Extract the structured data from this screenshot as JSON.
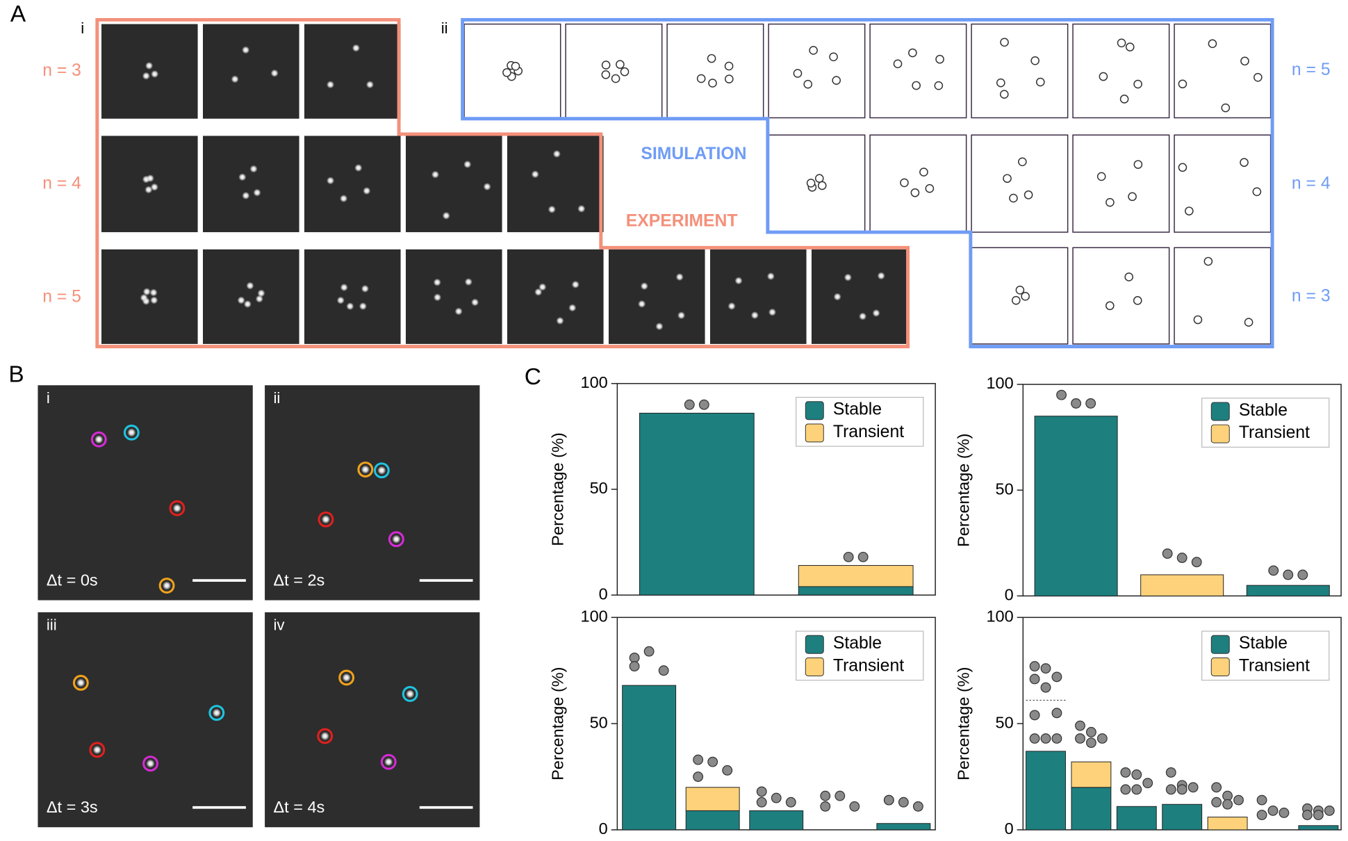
{
  "panel_a": {
    "label": "A",
    "subpanels": [
      "i",
      "ii"
    ],
    "experiment": {
      "label": "EXPERIMENT",
      "rows": [
        "n = 3",
        "n = 4",
        "n = 5"
      ]
    },
    "simulation": {
      "label": "SIMULATION",
      "rows": [
        "n = 5",
        "n = 4",
        "n = 3"
      ]
    }
  },
  "panel_b": {
    "label": "B",
    "frames": [
      {
        "label": "i",
        "time": "Δt = 0s"
      },
      {
        "label": "ii",
        "time": "Δt = 2s"
      },
      {
        "label": "iii",
        "time": "Δt = 3s"
      },
      {
        "label": "iv",
        "time": "Δt = 4s"
      }
    ]
  },
  "panel_c": {
    "label": "C"
  },
  "chart_data": [
    {
      "type": "bar",
      "ylabel": "Percentage (%)",
      "ylim": [
        0,
        100
      ],
      "yticks": [
        0,
        50,
        100
      ],
      "categories": [
        null,
        null
      ],
      "series": [
        {
          "name": "Stable",
          "color": "#1e7f7f",
          "values": [
            86,
            4
          ]
        },
        {
          "name": "Transient",
          "color": "#fdd27a",
          "values": [
            0,
            10
          ]
        }
      ],
      "points": [
        [
          90,
          90
        ],
        [
          18,
          18
        ]
      ]
    },
    {
      "type": "bar",
      "ylabel": "Percentage (%)",
      "ylim": [
        0,
        100
      ],
      "yticks": [
        0,
        50,
        100
      ],
      "categories": [
        null,
        null,
        null
      ],
      "series": [
        {
          "name": "Stable",
          "color": "#1e7f7f",
          "values": [
            85,
            0,
            5
          ]
        },
        {
          "name": "Transient",
          "color": "#fdd27a",
          "values": [
            0,
            10,
            0
          ]
        }
      ],
      "points": [
        [
          95,
          91,
          91
        ],
        [
          20,
          18,
          16
        ],
        [
          12,
          10,
          10
        ]
      ]
    },
    {
      "type": "bar",
      "ylabel": "Percentage (%)",
      "ylim": [
        0,
        100
      ],
      "yticks": [
        0,
        50,
        100
      ],
      "categories": [
        null,
        null,
        null,
        null,
        null
      ],
      "series": [
        {
          "name": "Stable",
          "color": "#1e7f7f",
          "values": [
            68,
            9,
            9,
            0,
            3
          ]
        },
        {
          "name": "Transient",
          "color": "#fdd27a",
          "values": [
            0,
            11,
            0,
            0,
            0
          ]
        }
      ],
      "points": [
        [
          81,
          84,
          75,
          77
        ],
        [
          33,
          32,
          28,
          25
        ],
        [
          18,
          15,
          13,
          13
        ],
        [
          16,
          16,
          11,
          11
        ],
        [
          14,
          13,
          11,
          14
        ]
      ]
    },
    {
      "type": "bar",
      "ylabel": "Percentage (%)",
      "ylim": [
        0,
        100
      ],
      "yticks": [
        0,
        50,
        100
      ],
      "categories": [
        null,
        null,
        null,
        null,
        null,
        null,
        null
      ],
      "series": [
        {
          "name": "Stable",
          "color": "#1e7f7f",
          "values": [
            37,
            20,
            11,
            12,
            0,
            0,
            2
          ]
        },
        {
          "name": "Transient",
          "color": "#fdd27a",
          "values": [
            0,
            12,
            0,
            0,
            6,
            0,
            0
          ]
        }
      ],
      "points": [
        [
          77,
          76,
          72,
          71,
          67,
          55,
          54,
          43,
          43,
          43
        ],
        [
          49,
          46,
          43,
          43,
          41
        ],
        [
          27,
          26,
          22,
          19,
          19
        ],
        [
          27,
          21,
          20,
          19,
          19
        ],
        [
          20,
          16,
          14,
          13,
          12
        ],
        [
          14,
          9,
          8,
          7
        ],
        [
          10,
          9,
          9,
          7,
          7
        ]
      ],
      "dotted_values": [
        61,
        null,
        null,
        null,
        null,
        null,
        null
      ]
    }
  ]
}
